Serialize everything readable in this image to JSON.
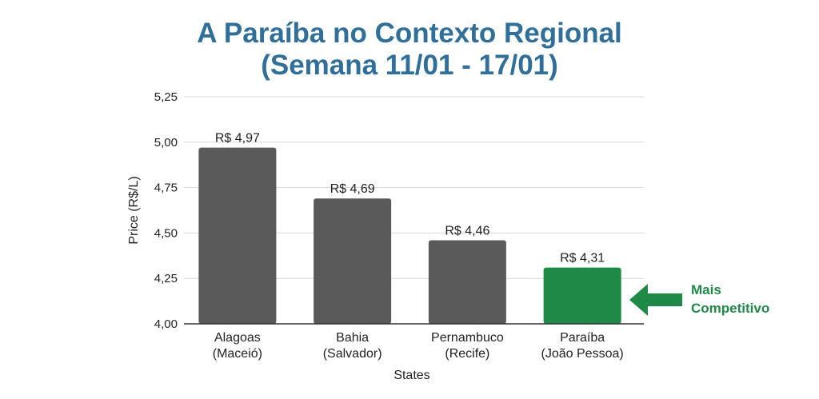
{
  "chart_data": {
    "type": "bar",
    "title": "A Paraíba no Contexto Regional",
    "subtitle": "(Semana 11/01 - 17/01)",
    "xlabel": "States",
    "ylabel": "Price (R$/L)",
    "ylim": [
      4.0,
      5.25
    ],
    "yticks": [
      "4,00",
      "4,25",
      "4,50",
      "4,75",
      "5,00",
      "5,25"
    ],
    "grid": true,
    "categories": [
      [
        "Alagoas",
        "(Maceió)"
      ],
      [
        "Bahia",
        "(Salvador)"
      ],
      [
        "Pernambuco",
        "(Recife)"
      ],
      [
        "Paraíba",
        "(João Pessoa)"
      ]
    ],
    "values": [
      4.97,
      4.69,
      4.46,
      4.31
    ],
    "data_labels": [
      "R$ 4,97",
      "R$ 4,69",
      "R$ 4,46",
      "R$ 4,31"
    ],
    "colors": [
      "#5a5a5a",
      "#5a5a5a",
      "#5a5a5a",
      "#1f8a47"
    ],
    "annotation": {
      "lines": [
        "Mais",
        "Competitivo"
      ],
      "color": "#1f8a47",
      "icon": "arrow-left-icon"
    }
  }
}
